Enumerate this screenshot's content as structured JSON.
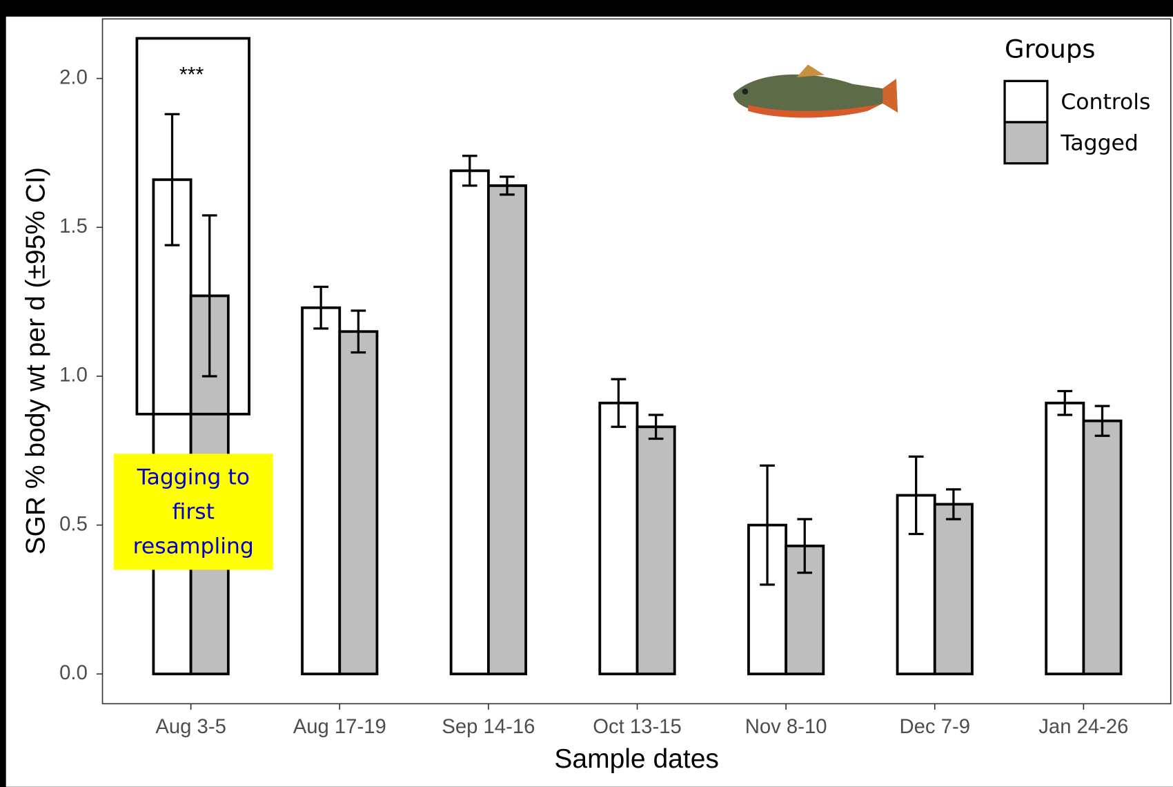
{
  "chart_data": {
    "type": "bar",
    "y_label": "SGR % body wt per d (±95% CI)",
    "x_label": "Sample dates",
    "categories": [
      "Aug 3-5",
      "Aug 17-19",
      "Sep 14-16",
      "Oct 13-15",
      "Nov 8-10",
      "Dec 7-9",
      "Jan 24-26"
    ],
    "legend_title": "Groups",
    "series": [
      {
        "name": "Controls",
        "color": "#ffffff",
        "values": [
          1.66,
          1.23,
          1.69,
          0.91,
          0.5,
          0.6,
          0.91
        ],
        "errors": [
          0.22,
          0.07,
          0.05,
          0.08,
          0.2,
          0.13,
          0.04
        ]
      },
      {
        "name": "Tagged",
        "color": "#bebebe",
        "values": [
          1.27,
          1.15,
          1.64,
          0.83,
          0.43,
          0.57,
          0.85
        ],
        "errors": [
          0.27,
          0.07,
          0.03,
          0.04,
          0.09,
          0.05,
          0.05
        ]
      }
    ],
    "ylim": [
      -0.1,
      2.2
    ],
    "yticks": [
      {
        "value": 0,
        "label": "0.0"
      },
      0.5,
      {
        "value": 1,
        "label": "1.0"
      },
      1.5,
      {
        "value": 2,
        "label": "2.0"
      }
    ],
    "grid": false,
    "legend_position": "top-right",
    "annotations": [
      "***",
      "Tagging to first resampling"
    ]
  }
}
